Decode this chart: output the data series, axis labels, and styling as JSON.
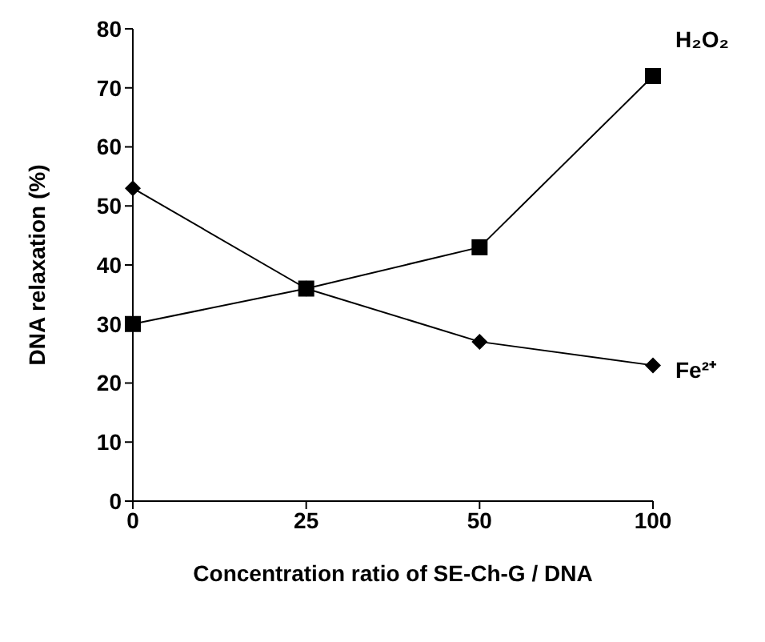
{
  "chart_data": {
    "type": "line",
    "xlabel": "Concentration ratio of SE-Ch-G / DNA",
    "ylabel": "DNA relaxation (%)",
    "categories": [
      "0",
      "25",
      "50",
      "100"
    ],
    "ylim": [
      0,
      80
    ],
    "yticks": [
      0,
      10,
      20,
      30,
      40,
      50,
      60,
      70,
      80
    ],
    "grid": false,
    "legend": false,
    "line_style": "solid",
    "series": [
      {
        "name": "H₂O₂",
        "color": "#000000",
        "marker": "square",
        "values": [
          30,
          36,
          43,
          72
        ]
      },
      {
        "name": "Fe²⁺",
        "color": "#000000",
        "marker": "diamond",
        "values": [
          53,
          36,
          27,
          23
        ]
      }
    ]
  }
}
